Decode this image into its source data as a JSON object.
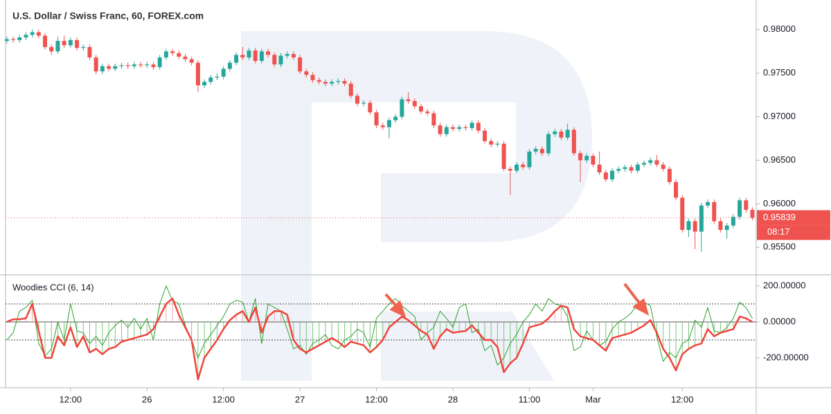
{
  "chart_data": [
    {
      "type": "candlestick",
      "title": "U.S. Dollar / Swiss Franc, 60, FOREX.com",
      "up_color": "#26a69a",
      "down_color": "#ef5350",
      "xlim": [
        -0.2,
        117.6
      ],
      "ylim": [
        0.952,
        0.9834
      ],
      "yticks": [
        {
          "value": 0.98,
          "label": "0.98000"
        },
        {
          "value": 0.975,
          "label": "0.97500"
        },
        {
          "value": 0.97,
          "label": "0.97000"
        },
        {
          "value": 0.965,
          "label": "0.96500"
        },
        {
          "value": 0.96,
          "label": "0.96000"
        },
        {
          "value": 0.955,
          "label": "0.95500"
        }
      ],
      "countdown": "08:17",
      "open": [
        0.9787,
        0.9789,
        0.9788,
        0.9791,
        0.9794,
        0.9797,
        0.9793,
        0.978,
        0.9775,
        0.9787,
        0.9782,
        0.9788,
        0.9779,
        0.978,
        0.9768,
        0.9752,
        0.9758,
        0.9755,
        0.9758,
        0.9759,
        0.9758,
        0.976,
        0.9759,
        0.976,
        0.9757,
        0.9768,
        0.9775,
        0.9773,
        0.9769,
        0.9766,
        0.9762,
        0.9736,
        0.974,
        0.9745,
        0.9746,
        0.9755,
        0.9762,
        0.9771,
        0.9768,
        0.9776,
        0.9764,
        0.9775,
        0.9771,
        0.976,
        0.977,
        0.9772,
        0.9768,
        0.9752,
        0.9748,
        0.9742,
        0.974,
        0.9738,
        0.974,
        0.9741,
        0.9738,
        0.9724,
        0.9715,
        0.9716,
        0.9705,
        0.969,
        0.9688,
        0.9696,
        0.97,
        0.972,
        0.9718,
        0.9712,
        0.9706,
        0.9704,
        0.969,
        0.968,
        0.9688,
        0.9686,
        0.9688,
        0.9687,
        0.9693,
        0.9684,
        0.9672,
        0.9668,
        0.9669,
        0.964,
        0.9638,
        0.9645,
        0.9642,
        0.966,
        0.9663,
        0.9658,
        0.968,
        0.9683,
        0.9676,
        0.9685,
        0.9658,
        0.965,
        0.9655,
        0.9645,
        0.9636,
        0.9628,
        0.9638,
        0.964,
        0.9642,
        0.9638,
        0.9645,
        0.9647,
        0.965,
        0.9645,
        0.964,
        0.9625,
        0.9607,
        0.957,
        0.958,
        0.9568,
        0.9598,
        0.9602,
        0.958,
        0.957,
        0.9575,
        0.9585,
        0.9604,
        0.9593
      ],
      "high": [
        0.9792,
        0.9792,
        0.9794,
        0.9797,
        0.98,
        0.98,
        0.9796,
        0.9783,
        0.9792,
        0.9793,
        0.9791,
        0.9791,
        0.9783,
        0.9783,
        0.9771,
        0.9761,
        0.9761,
        0.9761,
        0.9762,
        0.9762,
        0.9763,
        0.9763,
        0.9763,
        0.9763,
        0.9771,
        0.9778,
        0.9778,
        0.9776,
        0.9772,
        0.9769,
        0.9765,
        0.9743,
        0.9748,
        0.975,
        0.9758,
        0.9765,
        0.9774,
        0.978,
        0.9779,
        0.9779,
        0.9778,
        0.9778,
        0.9774,
        0.9773,
        0.9775,
        0.9775,
        0.9771,
        0.9755,
        0.9751,
        0.9745,
        0.9743,
        0.9743,
        0.9744,
        0.9744,
        0.9741,
        0.9727,
        0.9719,
        0.9719,
        0.9708,
        0.9693,
        0.9699,
        0.9703,
        0.9723,
        0.9728,
        0.9721,
        0.9715,
        0.9709,
        0.9707,
        0.9693,
        0.9691,
        0.9691,
        0.9691,
        0.9691,
        0.9696,
        0.9696,
        0.9687,
        0.9675,
        0.9672,
        0.9672,
        0.9643,
        0.9648,
        0.9648,
        0.9663,
        0.9666,
        0.9666,
        0.9683,
        0.9686,
        0.9686,
        0.9692,
        0.9688,
        0.9661,
        0.9658,
        0.9658,
        0.966,
        0.9639,
        0.9641,
        0.9643,
        0.9645,
        0.9645,
        0.9648,
        0.965,
        0.9653,
        0.9656,
        0.9648,
        0.9643,
        0.9628,
        0.961,
        0.9583,
        0.9583,
        0.9601,
        0.9605,
        0.9605,
        0.9583,
        0.9578,
        0.9588,
        0.9607,
        0.9607,
        0.9596
      ],
      "low": [
        0.9784,
        0.9785,
        0.9785,
        0.9788,
        0.9791,
        0.979,
        0.9777,
        0.9771,
        0.9772,
        0.9779,
        0.9779,
        0.9776,
        0.9776,
        0.9765,
        0.9749,
        0.9749,
        0.9752,
        0.9752,
        0.9755,
        0.9755,
        0.9755,
        0.9756,
        0.9756,
        0.9754,
        0.9754,
        0.9765,
        0.977,
        0.9766,
        0.9763,
        0.9759,
        0.9728,
        0.9733,
        0.9737,
        0.9742,
        0.9743,
        0.9752,
        0.9759,
        0.9765,
        0.9765,
        0.9761,
        0.9761,
        0.9768,
        0.9757,
        0.9757,
        0.9767,
        0.9765,
        0.9749,
        0.9745,
        0.9739,
        0.9737,
        0.9735,
        0.9735,
        0.9737,
        0.9735,
        0.9721,
        0.9712,
        0.9712,
        0.9702,
        0.9687,
        0.9685,
        0.9675,
        0.9693,
        0.9697,
        0.9715,
        0.9709,
        0.9703,
        0.9701,
        0.9687,
        0.9677,
        0.9677,
        0.9683,
        0.9683,
        0.9684,
        0.9684,
        0.9681,
        0.9669,
        0.9665,
        0.9665,
        0.9637,
        0.961,
        0.9635,
        0.9639,
        0.9639,
        0.9657,
        0.9655,
        0.9655,
        0.9677,
        0.9673,
        0.9673,
        0.9655,
        0.9625,
        0.9647,
        0.9642,
        0.9633,
        0.9625,
        0.9625,
        0.9635,
        0.9637,
        0.9635,
        0.9635,
        0.9642,
        0.9644,
        0.9642,
        0.9637,
        0.9622,
        0.9604,
        0.9567,
        0.9562,
        0.9548,
        0.9545,
        0.9595,
        0.9577,
        0.9567,
        0.956,
        0.9572,
        0.9582,
        0.959,
        0.9581
      ],
      "close": [
        0.9789,
        0.9788,
        0.9791,
        0.9794,
        0.9797,
        0.9793,
        0.978,
        0.9775,
        0.9787,
        0.9782,
        0.9788,
        0.9779,
        0.978,
        0.9768,
        0.9752,
        0.9758,
        0.9755,
        0.9758,
        0.9759,
        0.9758,
        0.976,
        0.9759,
        0.976,
        0.9757,
        0.9768,
        0.9775,
        0.9773,
        0.9769,
        0.9766,
        0.9762,
        0.9736,
        0.974,
        0.9745,
        0.9746,
        0.9755,
        0.9762,
        0.9771,
        0.9768,
        0.9776,
        0.9764,
        0.9775,
        0.9771,
        0.976,
        0.977,
        0.9772,
        0.9768,
        0.9752,
        0.9748,
        0.9742,
        0.974,
        0.9738,
        0.974,
        0.9741,
        0.9738,
        0.9724,
        0.9715,
        0.9716,
        0.9705,
        0.969,
        0.9688,
        0.9696,
        0.97,
        0.972,
        0.9718,
        0.9712,
        0.9706,
        0.9704,
        0.969,
        0.968,
        0.9688,
        0.9686,
        0.9688,
        0.9687,
        0.9693,
        0.9684,
        0.9672,
        0.9668,
        0.9669,
        0.964,
        0.9638,
        0.9645,
        0.9642,
        0.966,
        0.9663,
        0.9658,
        0.968,
        0.9683,
        0.9676,
        0.9685,
        0.9658,
        0.965,
        0.9655,
        0.9645,
        0.9636,
        0.9628,
        0.9638,
        0.964,
        0.9642,
        0.9638,
        0.9645,
        0.9647,
        0.965,
        0.9645,
        0.964,
        0.9625,
        0.9607,
        0.957,
        0.958,
        0.9568,
        0.9598,
        0.9602,
        0.958,
        0.957,
        0.9575,
        0.9585,
        0.9604,
        0.9593,
        0.95839
      ]
    },
    {
      "type": "line",
      "title": "Woodies CCI (6, 14)",
      "xlim": [
        -0.2,
        117.6
      ],
      "xticks": [
        {
          "value": 10,
          "label": "12:00"
        },
        {
          "value": 22,
          "label": "26"
        },
        {
          "value": 34,
          "label": "12:00"
        },
        {
          "value": 46,
          "label": "27"
        },
        {
          "value": 58,
          "label": "12:00"
        },
        {
          "value": 70,
          "label": "28"
        },
        {
          "value": 82,
          "label": "11:00"
        },
        {
          "value": 92,
          "label": "Mar"
        },
        {
          "value": 106,
          "label": "12:00"
        }
      ],
      "ylim": [
        -358,
        250
      ],
      "yticks": [
        {
          "value": 200,
          "label": "200.00000"
        },
        {
          "value": 0,
          "label": "0.00000"
        },
        {
          "value": -200,
          "label": "-200.00000"
        }
      ],
      "levels": [
        100,
        -100
      ],
      "histogram": true,
      "histogram_colors": [
        "#f4a6a6",
        "#7cc47c"
      ],
      "series": [
        {
          "color": "#2ca02c",
          "width": 1,
          "values": [
            -100,
            -60,
            60,
            80,
            120,
            -120,
            -190,
            -150,
            0,
            -100,
            100,
            -50,
            -60,
            -120,
            -80,
            -130,
            -60,
            -20,
            10,
            -30,
            20,
            -40,
            20,
            -100,
            100,
            200,
            120,
            100,
            -20,
            -100,
            -200,
            -120,
            -70,
            -20,
            30,
            100,
            120,
            110,
            0,
            130,
            -120,
            100,
            80,
            60,
            -40,
            -150,
            -130,
            -180,
            -120,
            -100,
            -70,
            -130,
            -150,
            -100,
            -80,
            -40,
            -60,
            -140,
            20,
            60,
            100,
            130,
            90,
            60,
            30,
            -100,
            -60,
            -30,
            60,
            20,
            -30,
            80,
            100,
            -60,
            -40,
            -160,
            -130,
            -240,
            -200,
            -120,
            -70,
            0,
            40,
            100,
            60,
            130,
            100,
            90,
            30,
            -160,
            -140,
            -50,
            -100,
            -130,
            -110,
            -40,
            0,
            20,
            50,
            100,
            110,
            90,
            -80,
            -220,
            -170,
            -200,
            -120,
            -100,
            10,
            -30,
            80,
            -50,
            -60,
            -30,
            20,
            110,
            80,
            20
          ]
        },
        {
          "color": "#f0433a",
          "width": 2.5,
          "histogram": true,
          "values": [
            0,
            15,
            15,
            20,
            100,
            -50,
            -200,
            -200,
            -80,
            -130,
            -30,
            -140,
            -80,
            -170,
            -150,
            -180,
            -150,
            -140,
            -110,
            -100,
            -90,
            -80,
            -70,
            -40,
            30,
            100,
            130,
            40,
            -30,
            -100,
            -320,
            -200,
            -150,
            -100,
            -40,
            10,
            40,
            60,
            0,
            80,
            -60,
            30,
            60,
            60,
            40,
            -100,
            -150,
            -170,
            -150,
            -130,
            -110,
            -90,
            -110,
            -140,
            -110,
            -120,
            -130,
            -170,
            -140,
            -100,
            -30,
            0,
            30,
            10,
            -20,
            -50,
            -70,
            -150,
            -80,
            -40,
            -60,
            -55,
            -50,
            -20,
            -60,
            -100,
            -100,
            -140,
            -280,
            -230,
            -200,
            -120,
            -30,
            -20,
            -10,
            20,
            60,
            90,
            80,
            -40,
            -80,
            -90,
            -100,
            -130,
            -160,
            -90,
            -80,
            -70,
            -60,
            -40,
            -20,
            10,
            -60,
            -150,
            -200,
            -270,
            -180,
            -150,
            -130,
            -120,
            -40,
            -80,
            -60,
            -50,
            -40,
            30,
            20,
            0
          ]
        }
      ]
    }
  ]
}
